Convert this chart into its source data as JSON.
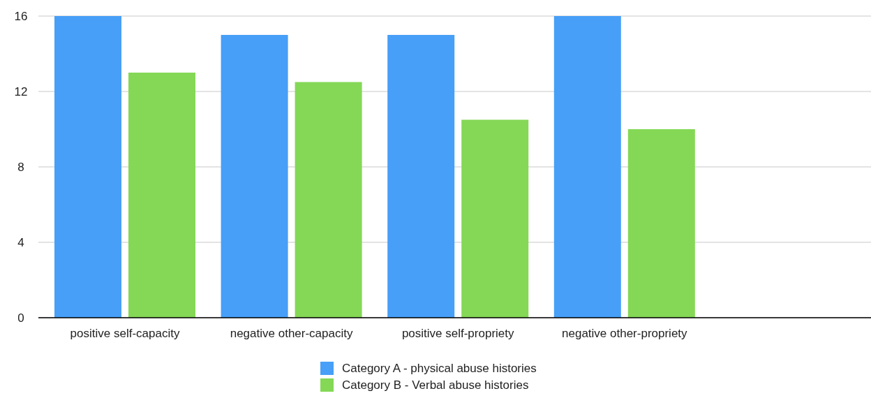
{
  "chart_data": {
    "type": "bar",
    "categories": [
      "positive self-capacity",
      "negative other-capacity",
      "positive self-propriety",
      "negative other-propriety",
      null
    ],
    "series": [
      {
        "name": "Category A - physical abuse histories",
        "color": "#479ff8",
        "values": [
          16,
          15,
          15,
          16,
          null
        ]
      },
      {
        "name": "Category B - Verbal abuse histories",
        "color": "#84d856",
        "values": [
          13,
          12.5,
          10.5,
          10,
          null
        ]
      }
    ],
    "ylim": [
      0,
      16
    ],
    "yticks": [
      0,
      4,
      8,
      12,
      16
    ],
    "grid": "y",
    "legend": "bottom"
  }
}
